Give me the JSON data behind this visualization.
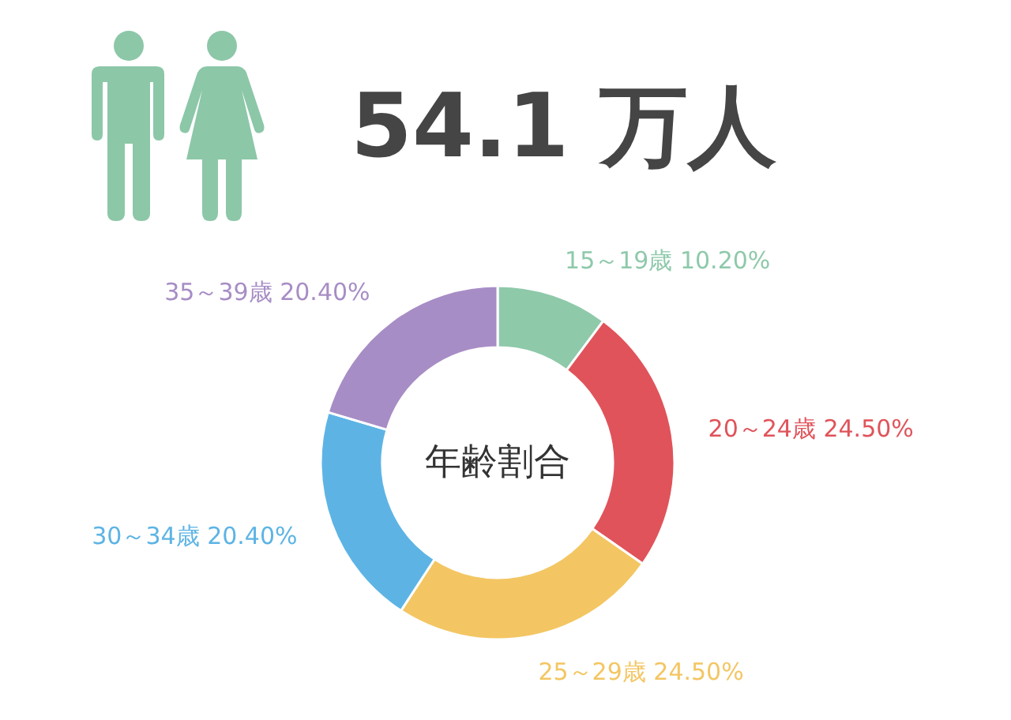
{
  "chart_data": {
    "type": "donut",
    "title": "54.1 万人",
    "categories": [
      "15～19歳",
      "20～24歳",
      "25～29歳",
      "30～34歳",
      "35～39歳"
    ],
    "values": [
      10.2,
      24.5,
      24.5,
      20.4,
      20.4
    ],
    "colors": [
      "#8ec9aa",
      "#e0535a",
      "#f3c663",
      "#5db4e4",
      "#a78dc5"
    ],
    "value_labels": [
      "10.20%",
      "24.50%",
      "24.50%",
      "20.40%",
      "20.40%"
    ],
    "annotations": [
      "年齢割合"
    ]
  }
}
